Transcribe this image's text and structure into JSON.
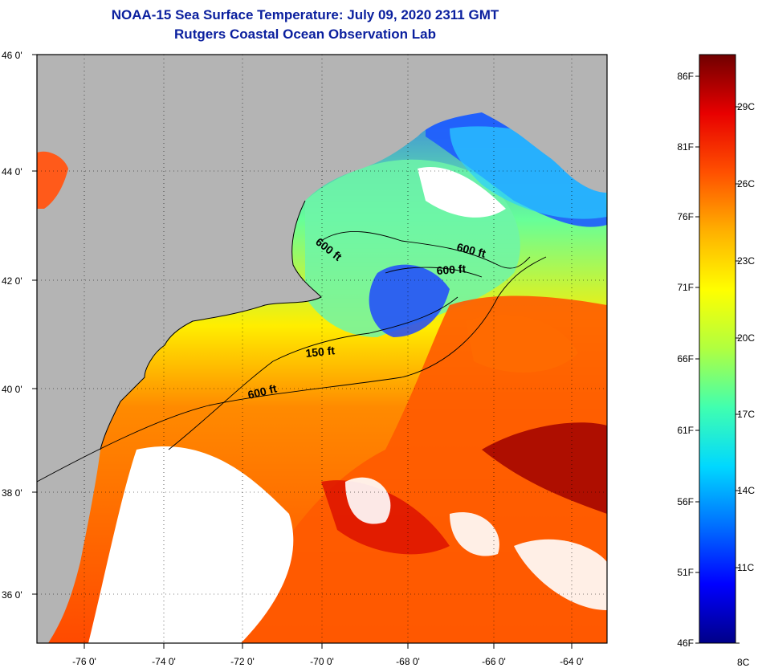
{
  "title": "NOAA-15 Sea Surface Temperature:  July 09, 2020 2311 GMT",
  "subtitle": "Rutgers Coastal Ocean Observation Lab",
  "map": {
    "lon_ticks": [
      "-76 0'",
      "-74 0'",
      "-72 0'",
      "-70 0'",
      "-68 0'",
      "-66 0'",
      "-64 0'"
    ],
    "lat_ticks": [
      "46 0'",
      "44 0'",
      "42 0'",
      "40 0'",
      "38 0'",
      "36 0'"
    ],
    "contour_labels": [
      "600 ft",
      "600 ft",
      "600 ft",
      "150 ft",
      "600 ft"
    ],
    "colors": {
      "land": "#b4b4b4",
      "cloud": "#ffffff"
    }
  },
  "colorbar": {
    "fahrenheit": [
      "86F",
      "81F",
      "76F",
      "71F",
      "66F",
      "61F",
      "56F",
      "51F",
      "46F"
    ],
    "celsius": [
      "29C",
      "26C",
      "23C",
      "20C",
      "17C",
      "14C",
      "11C",
      "8C"
    ],
    "gradient": [
      "#000088",
      "#0000ff",
      "#0070ff",
      "#00d8ff",
      "#40ffb0",
      "#b0ff40",
      "#ffff00",
      "#ffb000",
      "#ff5000",
      "#e80000",
      "#700000"
    ]
  }
}
